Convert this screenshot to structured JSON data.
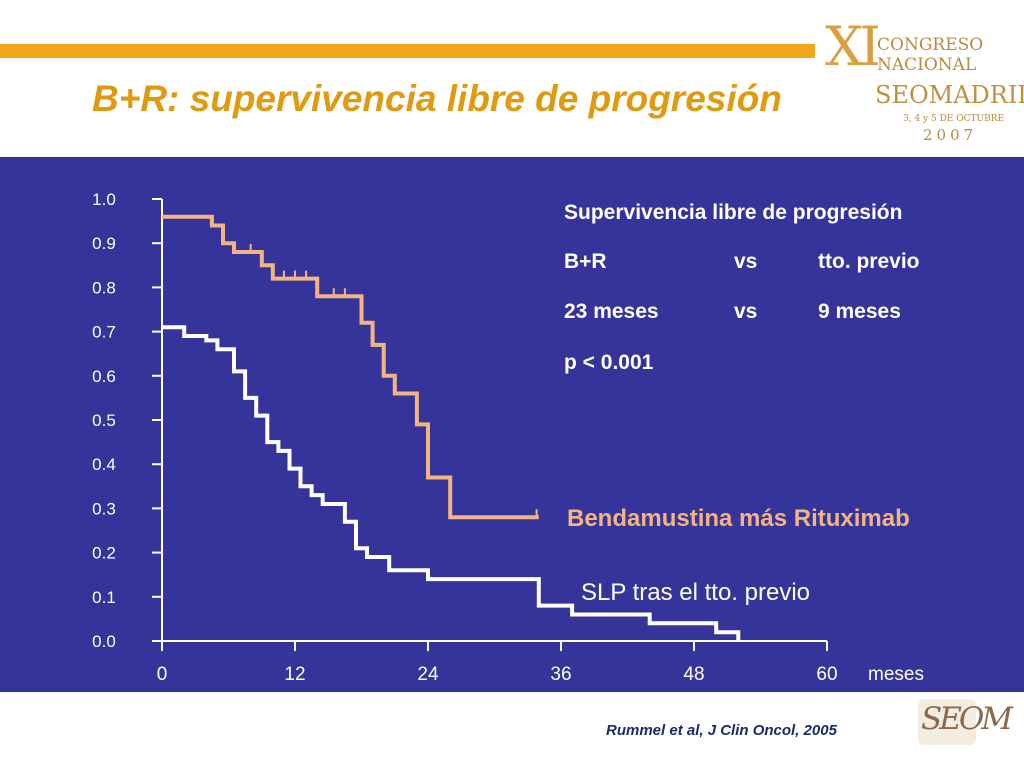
{
  "slide": {
    "title": "B+R: supervivencia libre de progresión",
    "citation": "Rummel et al, J Clin Oncol, 2005"
  },
  "logo": {
    "numeral": "XI",
    "line1": "CONGRESO",
    "line2": "NACIONAL",
    "line3": "SEOMADRID",
    "line4": "3, 4 y 5 DE OCTUBRE",
    "line5": "2007",
    "society_mark": "SEOM"
  },
  "legend_box": {
    "heading": "Supervivencia libre de progresión",
    "row1": [
      "B+R",
      "vs",
      "tto. previo"
    ],
    "row2": [
      "23 meses",
      "vs",
      "9 meses"
    ],
    "p_value": "p < 0.001"
  },
  "colors": {
    "panel": "#35349a",
    "br_curve": "#f4b482",
    "prev_curve": "#ffffff",
    "title": "#e09a10"
  },
  "chart_data": {
    "type": "line",
    "step": true,
    "x_unit_label": "meses",
    "xlim": [
      0,
      60
    ],
    "ylim": [
      0,
      1
    ],
    "x_ticks": [
      "0",
      "12",
      "24",
      "36",
      "48",
      "60"
    ],
    "y_ticks": [
      "0.0",
      "0.1",
      "0.2",
      "0.3",
      "0.4",
      "0.5",
      "0.6",
      "0.7",
      "0.8",
      "0.9",
      "1.0"
    ],
    "series": [
      {
        "name": "Bendamustina más Rituximab",
        "color": "#f4b482",
        "points": [
          [
            0,
            0.96
          ],
          [
            4.5,
            0.96
          ],
          [
            4.5,
            0.94
          ],
          [
            5.5,
            0.94
          ],
          [
            5.5,
            0.9
          ],
          [
            6.5,
            0.9
          ],
          [
            6.5,
            0.88
          ],
          [
            9,
            0.88
          ],
          [
            9,
            0.85
          ],
          [
            10,
            0.85
          ],
          [
            10,
            0.82
          ],
          [
            14,
            0.82
          ],
          [
            14,
            0.78
          ],
          [
            18,
            0.78
          ],
          [
            18,
            0.72
          ],
          [
            19,
            0.72
          ],
          [
            19,
            0.67
          ],
          [
            20,
            0.67
          ],
          [
            20,
            0.6
          ],
          [
            21,
            0.6
          ],
          [
            21,
            0.56
          ],
          [
            23,
            0.56
          ],
          [
            23,
            0.49
          ],
          [
            24,
            0.49
          ],
          [
            24,
            0.37
          ],
          [
            26,
            0.37
          ],
          [
            26,
            0.28
          ],
          [
            34,
            0.28
          ]
        ],
        "censor_x": [
          8,
          11,
          12,
          13,
          15.5,
          16.5,
          33.8
        ]
      },
      {
        "name": "SLP tras el tto. previo",
        "color": "#ffffff",
        "points": [
          [
            0,
            0.71
          ],
          [
            2,
            0.71
          ],
          [
            2,
            0.69
          ],
          [
            4,
            0.69
          ],
          [
            4,
            0.68
          ],
          [
            5,
            0.68
          ],
          [
            5,
            0.66
          ],
          [
            6.5,
            0.66
          ],
          [
            6.5,
            0.61
          ],
          [
            7.5,
            0.61
          ],
          [
            7.5,
            0.55
          ],
          [
            8.5,
            0.55
          ],
          [
            8.5,
            0.51
          ],
          [
            9.5,
            0.51
          ],
          [
            9.5,
            0.45
          ],
          [
            10.5,
            0.45
          ],
          [
            10.5,
            0.43
          ],
          [
            11.5,
            0.43
          ],
          [
            11.5,
            0.39
          ],
          [
            12.5,
            0.39
          ],
          [
            12.5,
            0.35
          ],
          [
            13.5,
            0.35
          ],
          [
            13.5,
            0.33
          ],
          [
            14.5,
            0.33
          ],
          [
            14.5,
            0.31
          ],
          [
            16.5,
            0.31
          ],
          [
            16.5,
            0.27
          ],
          [
            17.5,
            0.27
          ],
          [
            17.5,
            0.21
          ],
          [
            18.5,
            0.21
          ],
          [
            18.5,
            0.19
          ],
          [
            20.5,
            0.19
          ],
          [
            20.5,
            0.16
          ],
          [
            24,
            0.16
          ],
          [
            24,
            0.14
          ],
          [
            34,
            0.14
          ],
          [
            34,
            0.08
          ],
          [
            37,
            0.08
          ],
          [
            37,
            0.06
          ],
          [
            44,
            0.06
          ],
          [
            44,
            0.04
          ],
          [
            50,
            0.04
          ],
          [
            50,
            0.02
          ],
          [
            52,
            0.02
          ],
          [
            52,
            0.0
          ]
        ],
        "censor_x": []
      }
    ]
  }
}
